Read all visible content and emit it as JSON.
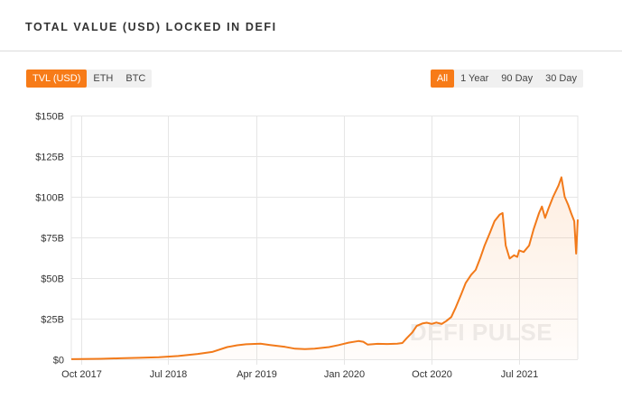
{
  "header": {
    "title": "TOTAL VALUE (USD) LOCKED IN DEFI"
  },
  "unit_tabs": [
    {
      "label": "TVL (USD)",
      "active": true
    },
    {
      "label": "ETH",
      "active": false
    },
    {
      "label": "BTC",
      "active": false
    }
  ],
  "range_tabs": [
    {
      "label": "All",
      "active": true
    },
    {
      "label": "1 Year",
      "active": false
    },
    {
      "label": "90 Day",
      "active": false
    },
    {
      "label": "30 Day",
      "active": false
    }
  ],
  "watermark": "DEFI PULSE",
  "colors": {
    "accent": "#f77b18",
    "line": "#f27a1a"
  },
  "chart_data": {
    "type": "area",
    "title": "",
    "xlabel": "",
    "ylabel": "",
    "xlim": [
      "2017-09-01",
      "2021-12-31"
    ],
    "ylim": [
      0,
      150
    ],
    "y_unit": "USD billions",
    "y_ticks": [
      {
        "value": 0,
        "label": "$0"
      },
      {
        "value": 25,
        "label": "$25B"
      },
      {
        "value": 50,
        "label": "$50B"
      },
      {
        "value": 75,
        "label": "$75B"
      },
      {
        "value": 100,
        "label": "$100B"
      },
      {
        "value": 125,
        "label": "$125B"
      },
      {
        "value": 150,
        "label": "$150B"
      }
    ],
    "x_ticks": [
      {
        "date": "2017-10-01",
        "label": "Oct 2017"
      },
      {
        "date": "2018-07-01",
        "label": "Jul 2018"
      },
      {
        "date": "2019-04-01",
        "label": "Apr 2019"
      },
      {
        "date": "2020-01-01",
        "label": "Jan 2020"
      },
      {
        "date": "2020-10-01",
        "label": "Oct 2020"
      },
      {
        "date": "2021-07-01",
        "label": "Jul 2021"
      }
    ],
    "grid": true,
    "series": [
      {
        "points": [
          [
            "2017-09-01",
            0.05
          ],
          [
            "2017-10-01",
            0.1
          ],
          [
            "2017-12-01",
            0.3
          ],
          [
            "2018-02-01",
            0.6
          ],
          [
            "2018-04-01",
            0.9
          ],
          [
            "2018-06-01",
            1.3
          ],
          [
            "2018-08-01",
            2.0
          ],
          [
            "2018-10-01",
            3.3
          ],
          [
            "2018-11-15",
            4.5
          ],
          [
            "2019-01-01",
            7.5
          ],
          [
            "2019-02-01",
            8.6
          ],
          [
            "2019-03-01",
            9.2
          ],
          [
            "2019-04-15",
            9.6
          ],
          [
            "2019-05-15",
            8.8
          ],
          [
            "2019-07-01",
            7.6
          ],
          [
            "2019-08-01",
            6.5
          ],
          [
            "2019-09-01",
            6.2
          ],
          [
            "2019-10-01",
            6.5
          ],
          [
            "2019-11-15",
            7.5
          ],
          [
            "2019-12-15",
            8.7
          ],
          [
            "2020-01-15",
            10.2
          ],
          [
            "2020-02-15",
            11.2
          ],
          [
            "2020-03-01",
            10.8
          ],
          [
            "2020-03-15",
            9.0
          ],
          [
            "2020-04-15",
            9.5
          ],
          [
            "2020-05-15",
            9.4
          ],
          [
            "2020-06-15",
            9.6
          ],
          [
            "2020-07-01",
            10.0
          ],
          [
            "2020-07-15",
            13.0
          ],
          [
            "2020-08-01",
            16.5
          ],
          [
            "2020-08-15",
            20.5
          ],
          [
            "2020-09-01",
            22.0
          ],
          [
            "2020-09-15",
            22.5
          ],
          [
            "2020-10-01",
            21.8
          ],
          [
            "2020-10-15",
            22.6
          ],
          [
            "2020-11-01",
            21.7
          ],
          [
            "2020-11-15",
            23.5
          ],
          [
            "2020-12-01",
            26.0
          ],
          [
            "2020-12-15",
            32.0
          ],
          [
            "2021-01-01",
            40.0
          ],
          [
            "2021-01-15",
            47.0
          ],
          [
            "2021-02-01",
            52.0
          ],
          [
            "2021-02-15",
            55.0
          ],
          [
            "2021-03-01",
            62.0
          ],
          [
            "2021-03-15",
            70.0
          ],
          [
            "2021-04-01",
            78.0
          ],
          [
            "2021-04-15",
            85.0
          ],
          [
            "2021-05-01",
            89.0
          ],
          [
            "2021-05-10",
            90.0
          ],
          [
            "2021-05-20",
            70.0
          ],
          [
            "2021-06-01",
            62.0
          ],
          [
            "2021-06-15",
            64.0
          ],
          [
            "2021-06-25",
            63.0
          ],
          [
            "2021-07-01",
            67.0
          ],
          [
            "2021-07-15",
            66.0
          ],
          [
            "2021-08-01",
            70.0
          ],
          [
            "2021-08-15",
            80.0
          ],
          [
            "2021-09-01",
            90.0
          ],
          [
            "2021-09-10",
            94.0
          ],
          [
            "2021-09-20",
            87.0
          ],
          [
            "2021-10-01",
            93.0
          ],
          [
            "2021-10-15",
            100.0
          ],
          [
            "2021-11-01",
            107.0
          ],
          [
            "2021-11-10",
            112.0
          ],
          [
            "2021-11-20",
            100.0
          ],
          [
            "2021-12-01",
            95.0
          ],
          [
            "2021-12-10",
            90.0
          ],
          [
            "2021-12-20",
            85.0
          ],
          [
            "2021-12-26",
            65.0
          ],
          [
            "2021-12-31",
            86.0
          ]
        ]
      }
    ]
  }
}
